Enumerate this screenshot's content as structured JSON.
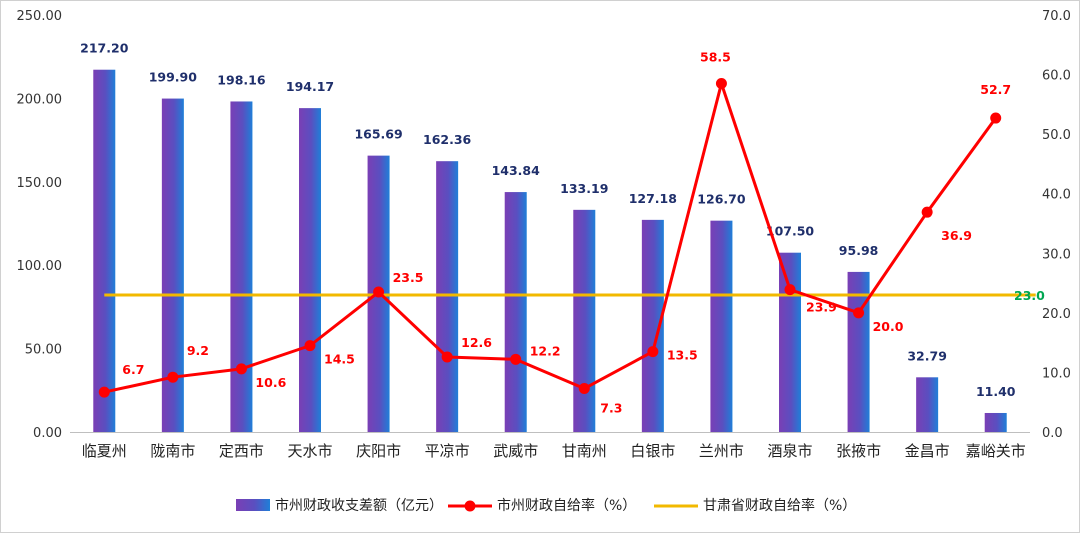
{
  "chart_data": {
    "type": "bar",
    "categories": [
      "临夏州",
      "陇南市",
      "定西市",
      "天水市",
      "庆阳市",
      "平凉市",
      "武威市",
      "甘南州",
      "白银市",
      "兰州市",
      "酒泉市",
      "张掖市",
      "金昌市",
      "嘉峪关市"
    ],
    "series": [
      {
        "name": "市州财政收支差额（亿元）",
        "type": "bar",
        "axis": "left",
        "color": "#5b3fb0",
        "values": [
          217.2,
          199.9,
          198.16,
          194.17,
          165.69,
          162.36,
          143.84,
          133.19,
          127.18,
          126.7,
          107.5,
          95.98,
          32.79,
          11.4
        ],
        "labels": [
          "217.20",
          "199.90",
          "198.16",
          "194.17",
          "165.69",
          "162.36",
          "143.84",
          "133.19",
          "127.18",
          "126.70",
          "107.50",
          "95.98",
          "32.79",
          "11.40"
        ]
      },
      {
        "name": "市州财政自给率（%）",
        "type": "line",
        "axis": "right",
        "color": "#ff0000",
        "values": [
          6.7,
          9.2,
          10.6,
          14.5,
          23.5,
          12.6,
          12.2,
          7.3,
          13.5,
          58.5,
          23.9,
          20.0,
          36.9,
          52.7
        ],
        "labels": [
          "6.7",
          "9.2",
          "10.6",
          "14.5",
          "23.5",
          "12.6",
          "12.2",
          "7.3",
          "13.5",
          "58.5",
          "23.9",
          "20.0",
          "36.9",
          "52.7"
        ]
      },
      {
        "name": "甘肃省财政自给率（%）",
        "type": "line",
        "axis": "right",
        "color": "#f2b900",
        "values": [
          23.0,
          23.0,
          23.0,
          23.0,
          23.0,
          23.0,
          23.0,
          23.0,
          23.0,
          23.0,
          23.0,
          23.0,
          23.0,
          23.0
        ],
        "end_label": "23.0"
      }
    ],
    "y_left": {
      "ylim": [
        0,
        250
      ],
      "ticks": [
        0,
        50,
        100,
        150,
        200,
        250
      ],
      "tick_labels": [
        "0.00",
        "50.00",
        "100.00",
        "150.00",
        "200.00",
        "250.00"
      ]
    },
    "y_right": {
      "ylim": [
        0,
        70
      ],
      "ticks": [
        0,
        10,
        20,
        30,
        40,
        50,
        60,
        70
      ],
      "tick_labels": [
        "0.0",
        "10.0",
        "20.0",
        "30.0",
        "40.0",
        "50.0",
        "60.0",
        "70.0"
      ]
    },
    "grid": false,
    "legend_position": "bottom"
  }
}
